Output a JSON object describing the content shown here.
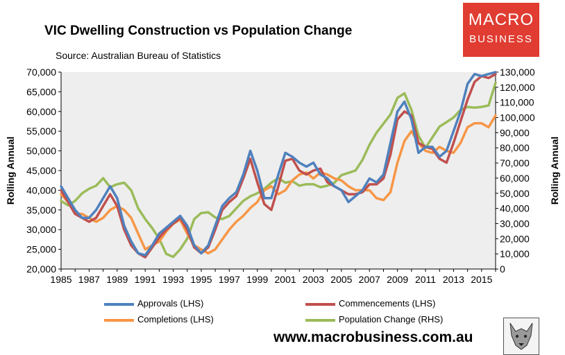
{
  "header": {
    "title": "VIC Dwelling Construction vs Population Change",
    "subtitle": "Source: Australian Bureau of Statistics"
  },
  "logo": {
    "line1": "MACRO",
    "line2": "BUSINESS"
  },
  "footer": {
    "url": "www.macrobusiness.com.au"
  },
  "colors": {
    "approvals": "#4f81bd",
    "commencements": "#c0504d",
    "completions": "#f79646",
    "population": "#9bbb59",
    "plot_bg": "#eeeeee",
    "logo_bg": "#e03c31"
  },
  "chart_data": {
    "type": "line",
    "title": "VIC Dwelling Construction vs Population Change",
    "xlabel": "",
    "ylabel_left": "Rolling Annual",
    "ylabel_right": "Rolling Annual",
    "ylim_left": [
      20000,
      70000
    ],
    "ylim_right": [
      0,
      130000
    ],
    "xlim": [
      1985,
      2016
    ],
    "yticks_left": [
      "20,000",
      "25,000",
      "30,000",
      "35,000",
      "40,000",
      "45,000",
      "50,000",
      "55,000",
      "60,000",
      "65,000",
      "70,000"
    ],
    "yticks_right": [
      "0",
      "10,000",
      "20,000",
      "30,000",
      "40,000",
      "50,000",
      "60,000",
      "70,000",
      "80,000",
      "90,000",
      "100,000",
      "110,000",
      "120,000",
      "130,000"
    ],
    "xticks": [
      "1985",
      "1987",
      "1989",
      "1991",
      "1993",
      "1995",
      "1997",
      "1999",
      "2001",
      "2003",
      "2005",
      "2007",
      "2009",
      "2011",
      "2013",
      "2015"
    ],
    "series": [
      {
        "name": "Approvals (LHS)",
        "axis": "left",
        "color_key": "approvals",
        "x": [
          1985,
          1985.5,
          1986,
          1986.5,
          1987,
          1987.5,
          1988,
          1988.5,
          1989,
          1989.5,
          1990,
          1990.5,
          1991,
          1991.5,
          1992,
          1992.5,
          1993,
          1993.5,
          1994,
          1994.5,
          1995,
          1995.5,
          1996,
          1996.5,
          1997,
          1997.5,
          1998,
          1998.5,
          1999,
          1999.5,
          2000,
          2000.5,
          2001,
          2001.5,
          2002,
          2002.5,
          2003,
          2003.5,
          2004,
          2004.5,
          2005,
          2005.5,
          2006,
          2006.5,
          2007,
          2007.5,
          2008,
          2008.5,
          2009,
          2009.5,
          2010,
          2010.5,
          2011,
          2011.5,
          2012,
          2012.5,
          2013,
          2013.5,
          2014,
          2014.5,
          2015,
          2015.5,
          2016
        ],
        "y": [
          41000,
          38000,
          35000,
          33000,
          33000,
          35000,
          38000,
          41000,
          38000,
          31000,
          27000,
          24000,
          23500,
          26000,
          29000,
          30500,
          32000,
          33500,
          31000,
          26000,
          24000,
          26000,
          31000,
          36000,
          38000,
          39500,
          44000,
          50000,
          45000,
          38000,
          38000,
          44000,
          49500,
          48500,
          47000,
          46000,
          47000,
          44000,
          43000,
          41000,
          40000,
          37000,
          38500,
          40000,
          43000,
          42000,
          44000,
          52000,
          60000,
          62500,
          58000,
          49500,
          51000,
          51000,
          48500,
          50000,
          55000,
          60000,
          67000,
          69500,
          69000,
          69500,
          70000
        ]
      },
      {
        "name": "Commencements (LHS)",
        "axis": "left",
        "color_key": "commencements",
        "x": [
          1985,
          1985.5,
          1986,
          1986.5,
          1987,
          1987.5,
          1988,
          1988.5,
          1989,
          1989.5,
          1990,
          1990.5,
          1991,
          1991.5,
          1992,
          1992.5,
          1993,
          1993.5,
          1994,
          1994.5,
          1995,
          1995.5,
          1996,
          1996.5,
          1997,
          1997.5,
          1998,
          1998.5,
          1999,
          1999.5,
          2000,
          2000.5,
          2001,
          2001.5,
          2002,
          2002.5,
          2003,
          2003.5,
          2004,
          2004.5,
          2005,
          2005.5,
          2006,
          2006.5,
          2007,
          2007.5,
          2008,
          2008.5,
          2009,
          2009.5,
          2010,
          2010.5,
          2011,
          2011.5,
          2012,
          2012.5,
          2013,
          2013.5,
          2014,
          2014.5,
          2015,
          2015.5,
          2016
        ],
        "y": [
          40000,
          37000,
          34000,
          33000,
          32000,
          33000,
          36000,
          39000,
          36000,
          30000,
          26000,
          24000,
          23000,
          25500,
          28000,
          30000,
          31500,
          33000,
          30000,
          25500,
          24000,
          25500,
          30000,
          35000,
          37000,
          38500,
          43000,
          48000,
          42000,
          36500,
          35000,
          41000,
          47500,
          48000,
          45000,
          44000,
          45000,
          45500,
          42000,
          41000,
          40000,
          39000,
          39000,
          39500,
          41500,
          41500,
          43000,
          49000,
          58000,
          60000,
          59000,
          52000,
          51000,
          50500,
          48000,
          47000,
          52000,
          57500,
          63000,
          67500,
          69000,
          68500,
          69500
        ]
      },
      {
        "name": "Completions (LHS)",
        "axis": "left",
        "color_key": "completions",
        "x": [
          1985,
          1985.5,
          1986,
          1986.5,
          1987,
          1987.5,
          1988,
          1988.5,
          1989,
          1989.5,
          1990,
          1990.5,
          1991,
          1991.5,
          1992,
          1992.5,
          1993,
          1993.5,
          1994,
          1994.5,
          1995,
          1995.5,
          1996,
          1996.5,
          1997,
          1997.5,
          1998,
          1998.5,
          1999,
          1999.5,
          2000,
          2000.5,
          2001,
          2001.5,
          2002,
          2002.5,
          2003,
          2003.5,
          2004,
          2004.5,
          2005,
          2005.5,
          2006,
          2006.5,
          2007,
          2007.5,
          2008,
          2008.5,
          2009,
          2009.5,
          2010,
          2010.5,
          2011,
          2011.5,
          2012,
          2012.5,
          2013,
          2013.5,
          2014,
          2014.5,
          2015,
          2015.5,
          2016
        ],
        "y": [
          39000,
          37000,
          34000,
          34000,
          33000,
          32000,
          33000,
          35000,
          36000,
          35000,
          33000,
          29000,
          25000,
          26000,
          27000,
          29500,
          31500,
          32500,
          29000,
          26000,
          25000,
          24000,
          25000,
          27500,
          30000,
          32000,
          33500,
          35500,
          37000,
          40000,
          41000,
          39000,
          40000,
          42500,
          44000,
          44500,
          43000,
          44500,
          44000,
          43000,
          42500,
          41000,
          40000,
          40000,
          40000,
          38000,
          37500,
          39500,
          47000,
          52500,
          55000,
          52000,
          50000,
          49500,
          51000,
          50000,
          49500,
          52000,
          56000,
          57000,
          57000,
          56000,
          59000
        ]
      },
      {
        "name": "Population Change (RHS)",
        "axis": "right",
        "color_key": "population",
        "x": [
          1985,
          1985.5,
          1986,
          1986.5,
          1987,
          1987.5,
          1988,
          1988.5,
          1989,
          1989.5,
          1990,
          1990.5,
          1991,
          1991.5,
          1992,
          1992.5,
          1993,
          1993.5,
          1994,
          1994.5,
          1995,
          1995.5,
          1996,
          1996.5,
          1997,
          1997.5,
          1998,
          1998.5,
          1999,
          1999.5,
          2000,
          2000.5,
          2001,
          2001.5,
          2002,
          2002.5,
          2003,
          2003.5,
          2004,
          2004.5,
          2005,
          2005.5,
          2006,
          2006.5,
          2007,
          2007.5,
          2008,
          2008.5,
          2009,
          2009.5,
          2010,
          2010.5,
          2011,
          2011.5,
          2012,
          2012.5,
          2013,
          2013.5,
          2014,
          2014.5,
          2015,
          2015.5,
          2016
        ],
        "y": [
          45000,
          42000,
          45000,
          50000,
          53000,
          55000,
          60000,
          54000,
          56000,
          57000,
          52000,
          40000,
          33000,
          27000,
          20000,
          10000,
          8000,
          13000,
          20000,
          33000,
          37000,
          37500,
          34000,
          33000,
          35000,
          40000,
          45000,
          48000,
          50000,
          53000,
          57000,
          60000,
          57000,
          58000,
          55000,
          56000,
          56000,
          54000,
          55000,
          57000,
          62000,
          63500,
          65000,
          72000,
          82000,
          90000,
          96000,
          102000,
          113000,
          116000,
          105000,
          88000,
          80000,
          87000,
          94000,
          97000,
          100000,
          105000,
          107000,
          106500,
          107000,
          108000,
          123000
        ]
      }
    ]
  }
}
